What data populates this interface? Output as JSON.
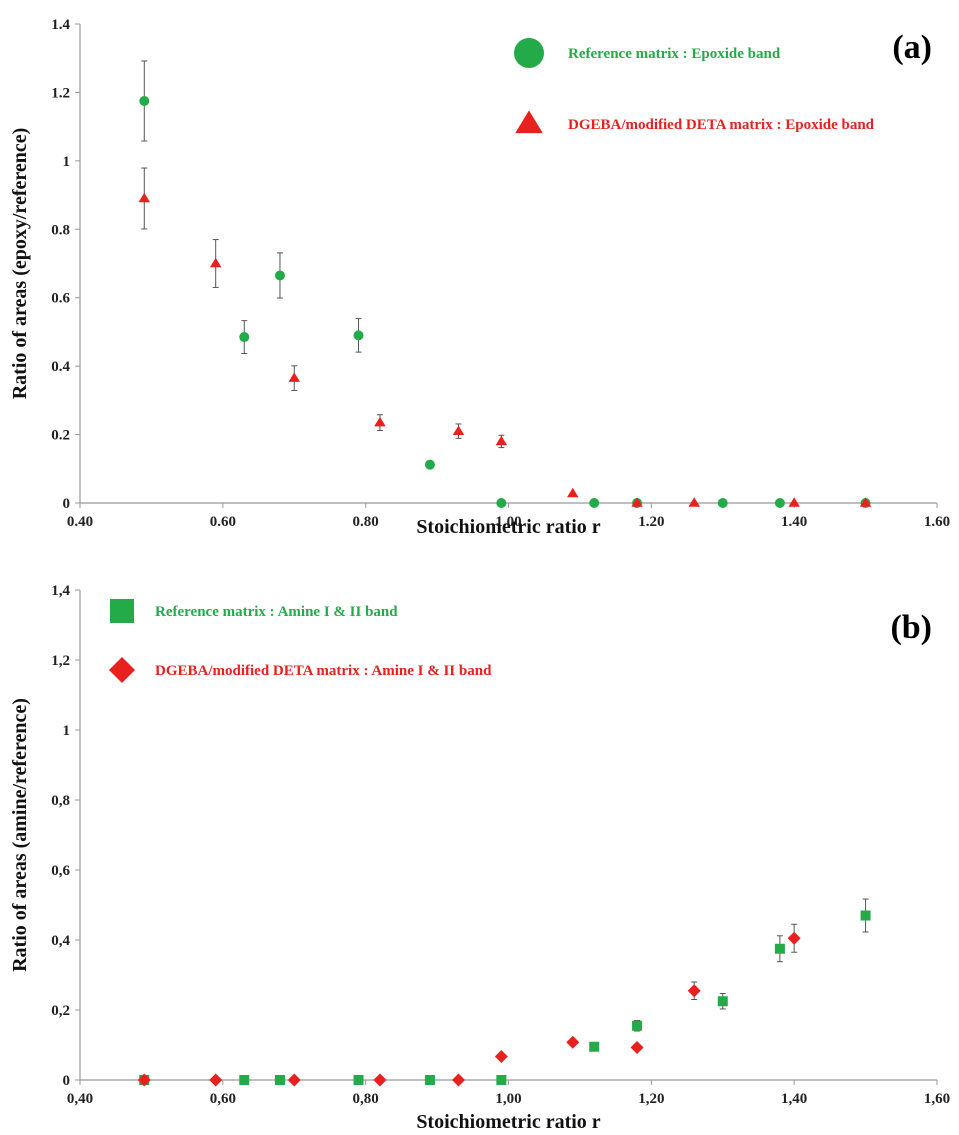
{
  "colors": {
    "green": "#23ab4a",
    "red": "#e8211f",
    "errorbar": "#555555",
    "axis": "#999999"
  },
  "chart_data": [
    {
      "type": "scatter",
      "panel_label": "(a)",
      "xlabel": "Stoichiometric ratio r",
      "ylabel": "Ratio of areas (epoxy/reference)",
      "xlim": [
        0.4,
        1.6
      ],
      "ylim": [
        0,
        1.4
      ],
      "x_ticks": [
        "0.40",
        "0.60",
        "0.80",
        "1.00",
        "1.20",
        "1.40",
        "1.60"
      ],
      "y_ticks": [
        "0",
        "0.2",
        "0.4",
        "0.6",
        "0.8",
        "1",
        "1.2",
        "1.4"
      ],
      "grid": false,
      "legend_position": "top-right",
      "series": [
        {
          "name": "Reference matrix :  Epoxide band",
          "marker": "circle",
          "color": "#23ab4a",
          "points": [
            {
              "x": 0.49,
              "y": 1.175,
              "err": 0.117
            },
            {
              "x": 0.63,
              "y": 0.485,
              "err": 0.048
            },
            {
              "x": 0.68,
              "y": 0.665,
              "err": 0.066
            },
            {
              "x": 0.79,
              "y": 0.49,
              "err": 0.049
            },
            {
              "x": 0.89,
              "y": 0.112,
              "err": 0
            },
            {
              "x": 0.99,
              "y": 0.0,
              "err": 0
            },
            {
              "x": 1.12,
              "y": 0.0,
              "err": 0
            },
            {
              "x": 1.18,
              "y": 0.0,
              "err": 0
            },
            {
              "x": 1.3,
              "y": 0.0,
              "err": 0
            },
            {
              "x": 1.38,
              "y": 0.0,
              "err": 0
            },
            {
              "x": 1.5,
              "y": 0.0,
              "err": 0
            }
          ]
        },
        {
          "name": "DGEBA/modified DETA matrix : Epoxide band",
          "marker": "triangle",
          "color": "#e8211f",
          "points": [
            {
              "x": 0.49,
              "y": 0.89,
              "err": 0.089
            },
            {
              "x": 0.59,
              "y": 0.7,
              "err": 0.07
            },
            {
              "x": 0.7,
              "y": 0.365,
              "err": 0.036
            },
            {
              "x": 0.82,
              "y": 0.235,
              "err": 0.023
            },
            {
              "x": 0.93,
              "y": 0.21,
              "err": 0.021
            },
            {
              "x": 0.99,
              "y": 0.18,
              "err": 0.018
            },
            {
              "x": 1.09,
              "y": 0.028,
              "err": 0
            },
            {
              "x": 1.18,
              "y": 0.0,
              "err": 0
            },
            {
              "x": 1.26,
              "y": 0.0,
              "err": 0
            },
            {
              "x": 1.4,
              "y": 0.0,
              "err": 0
            },
            {
              "x": 1.5,
              "y": 0.0,
              "err": 0
            }
          ]
        }
      ]
    },
    {
      "type": "scatter",
      "panel_label": "(b)",
      "xlabel": "Stoichiometric ratio r",
      "ylabel": "Ratio of areas (amine/reference)",
      "xlim": [
        0.4,
        1.6
      ],
      "ylim": [
        0,
        1.4
      ],
      "x_ticks": [
        "0,40",
        "0,60",
        "0,80",
        "1,00",
        "1,20",
        "1,40",
        "1,60"
      ],
      "y_ticks": [
        "0",
        "0,2",
        "0,4",
        "0,6",
        "0,8",
        "1",
        "1,2",
        "1,4"
      ],
      "grid": false,
      "legend_position": "top-left",
      "series": [
        {
          "name": "Reference matrix :  Amine I & II band",
          "marker": "square",
          "color": "#23ab4a",
          "points": [
            {
              "x": 0.49,
              "y": 0.0,
              "err": 0
            },
            {
              "x": 0.63,
              "y": 0.0,
              "err": 0
            },
            {
              "x": 0.68,
              "y": 0.0,
              "err": 0
            },
            {
              "x": 0.79,
              "y": 0.0,
              "err": 0
            },
            {
              "x": 0.89,
              "y": 0.0,
              "err": 0
            },
            {
              "x": 0.99,
              "y": 0.0,
              "err": 0
            },
            {
              "x": 1.12,
              "y": 0.095,
              "err": 0
            },
            {
              "x": 1.18,
              "y": 0.155,
              "err": 0.015
            },
            {
              "x": 1.3,
              "y": 0.225,
              "err": 0.022
            },
            {
              "x": 1.38,
              "y": 0.375,
              "err": 0.037
            },
            {
              "x": 1.5,
              "y": 0.47,
              "err": 0.047
            }
          ]
        },
        {
          "name": "DGEBA/modified DETA matrix : Amine I & II band",
          "marker": "diamond",
          "color": "#e8211f",
          "points": [
            {
              "x": 0.49,
              "y": 0.0,
              "err": 0
            },
            {
              "x": 0.59,
              "y": 0.0,
              "err": 0
            },
            {
              "x": 0.7,
              "y": 0.0,
              "err": 0
            },
            {
              "x": 0.82,
              "y": 0.0,
              "err": 0
            },
            {
              "x": 0.93,
              "y": 0.0,
              "err": 0
            },
            {
              "x": 0.99,
              "y": 0.067,
              "err": 0
            },
            {
              "x": 1.09,
              "y": 0.108,
              "err": 0
            },
            {
              "x": 1.18,
              "y": 0.093,
              "err": 0
            },
            {
              "x": 1.26,
              "y": 0.255,
              "err": 0.025
            },
            {
              "x": 1.4,
              "y": 0.405,
              "err": 0.04
            }
          ]
        }
      ]
    }
  ]
}
